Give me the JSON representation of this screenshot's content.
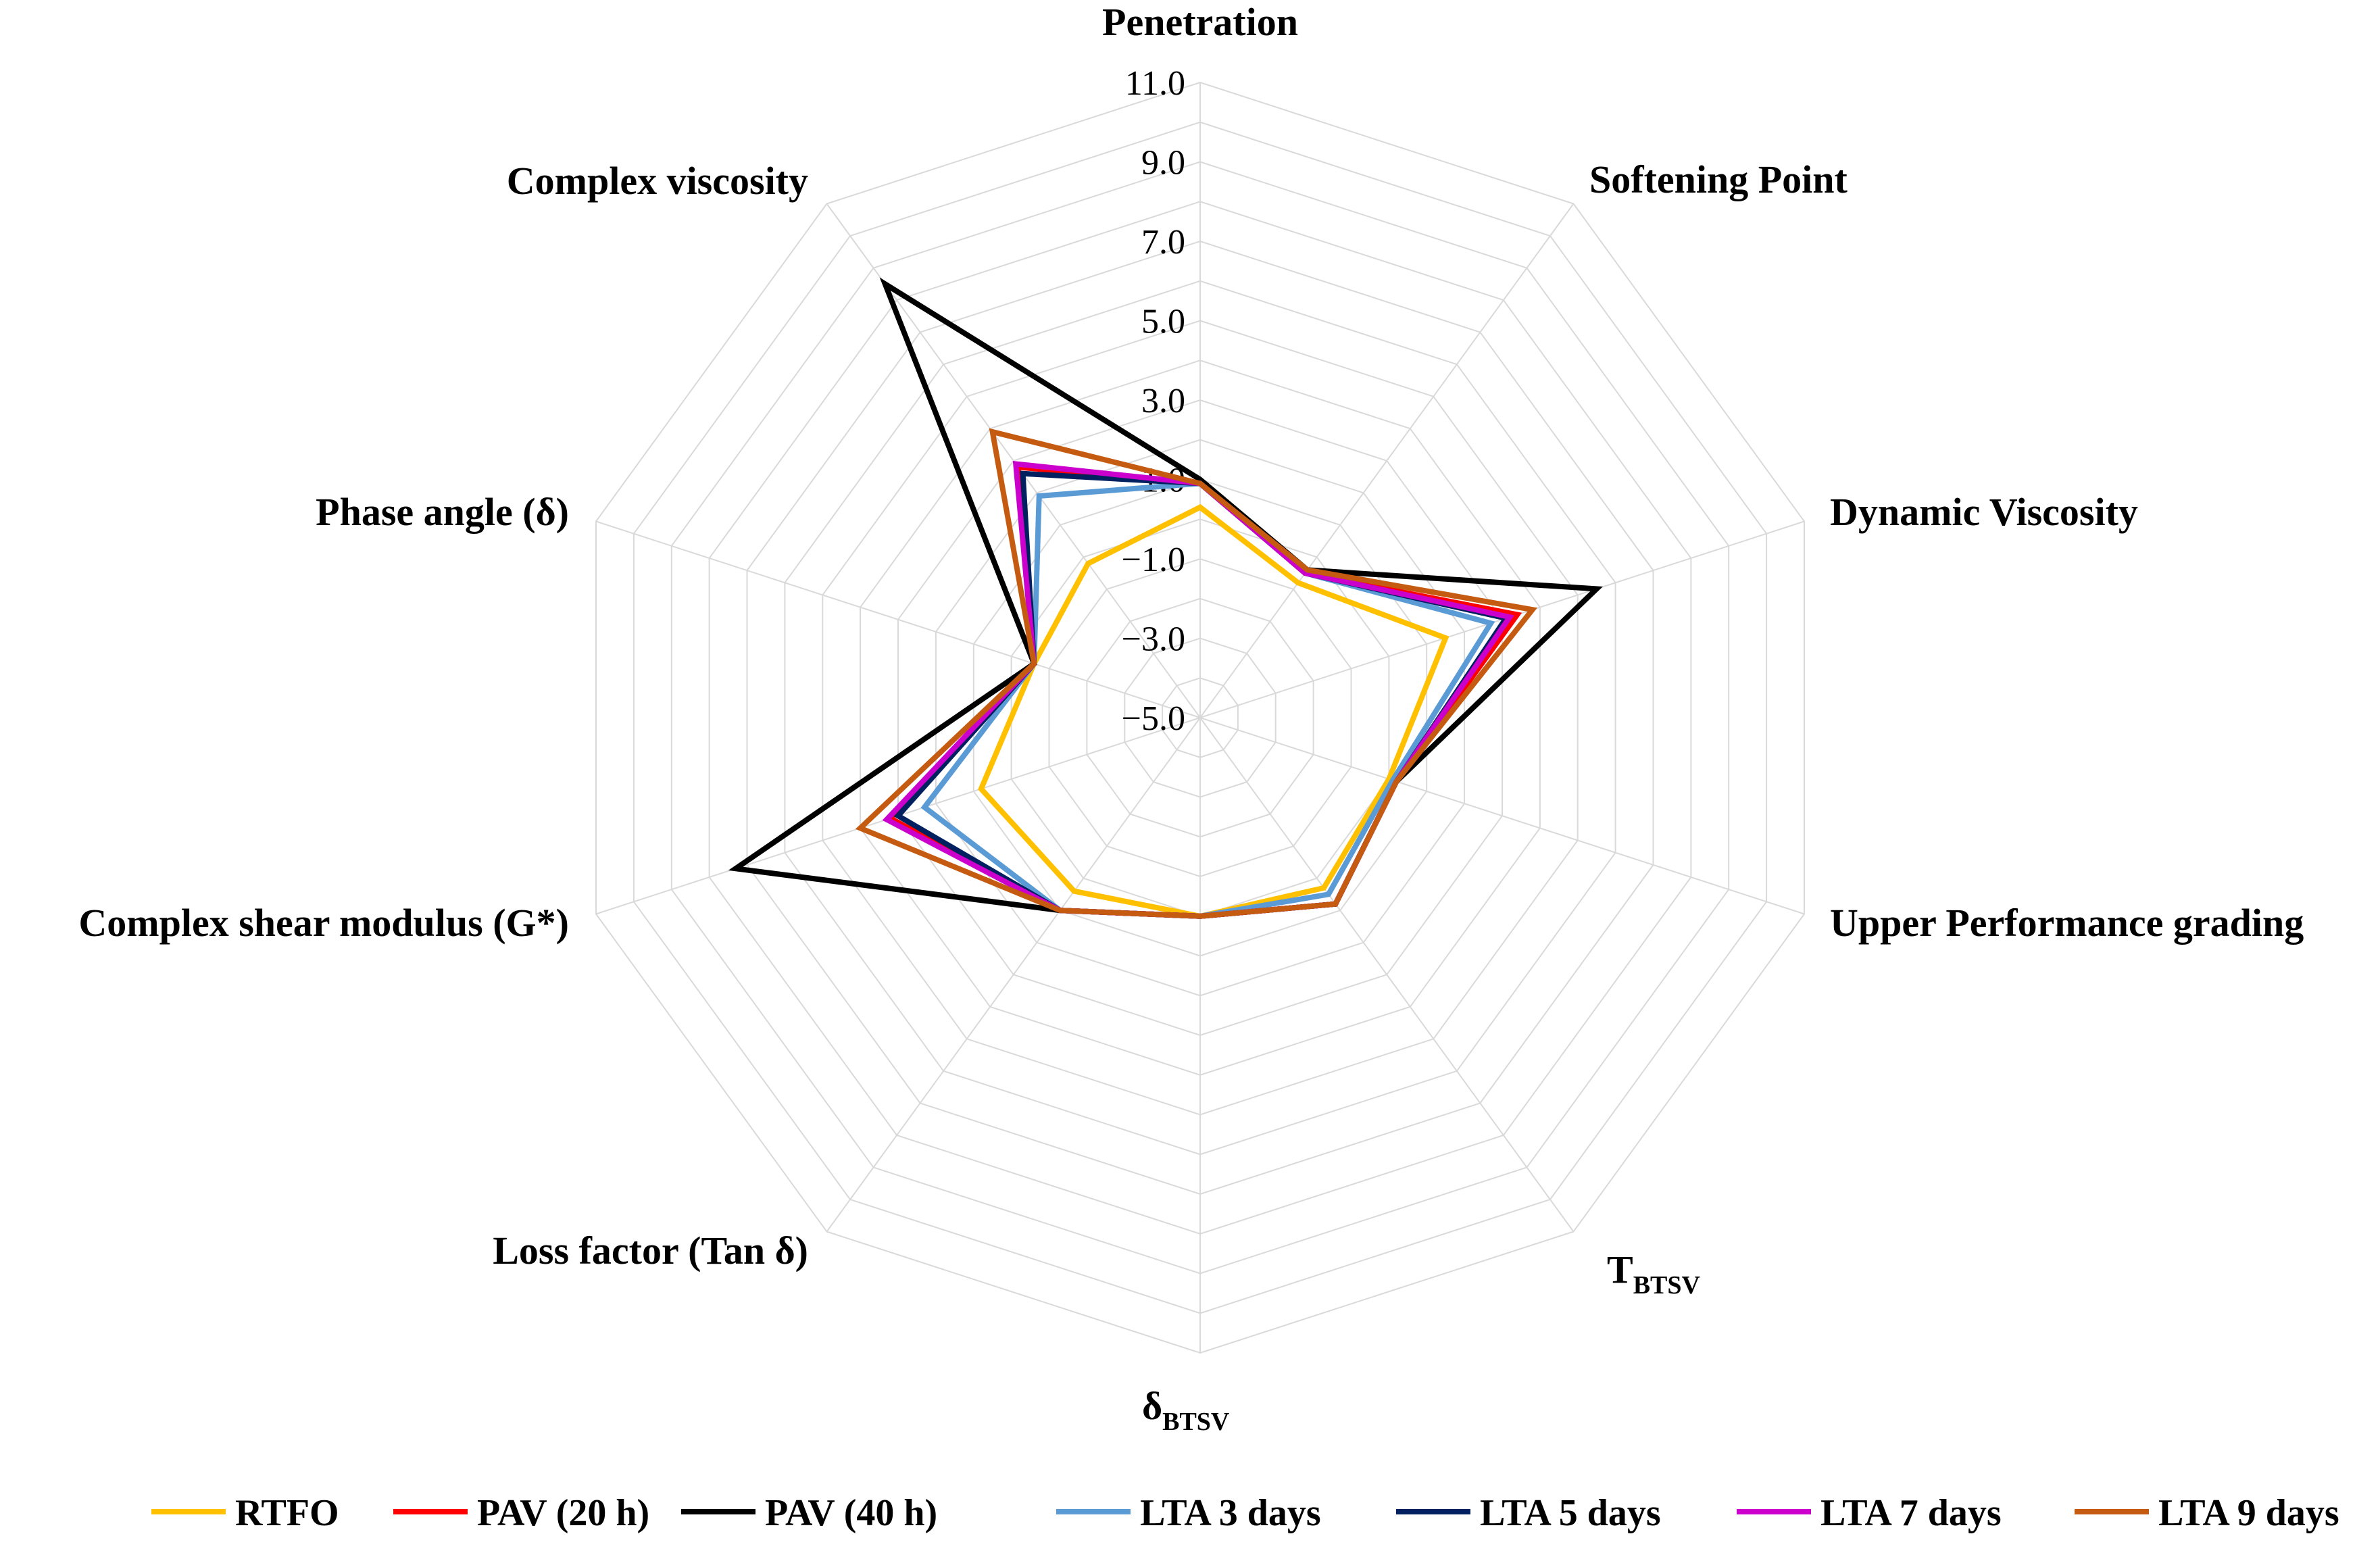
{
  "chart_data": {
    "type": "radar",
    "title": "",
    "axes": [
      {
        "label": "Penetration",
        "sub": ""
      },
      {
        "label": "Softening Point",
        "sub": ""
      },
      {
        "label": "Dynamic Viscosity",
        "sub": ""
      },
      {
        "label": "Upper Performance grading",
        "sub": ""
      },
      {
        "label": "T",
        "sub": "BTSV"
      },
      {
        "label": "δ",
        "sub": "BTSV"
      },
      {
        "label": "Loss factor (Tan δ)",
        "sub": ""
      },
      {
        "label": "Complex shear modulus (G*)",
        "sub": ""
      },
      {
        "label": "Phase angle (δ)",
        "sub": ""
      },
      {
        "label": "Complex viscosity",
        "sub": ""
      }
    ],
    "r_range": [
      -5.0,
      11.0
    ],
    "ticks": [
      -5.0,
      -3.0,
      -1.0,
      1.0,
      3.0,
      5.0,
      7.0,
      9.0,
      11.0
    ],
    "tick_labels": [
      "−5.0",
      "−3.0",
      "−1.0",
      "1.0",
      "3.0",
      "5.0",
      "7.0",
      "9.0",
      "11.0"
    ],
    "grid": true,
    "legend_position": "bottom",
    "series": [
      {
        "name": "RTFO",
        "color": "#ffc000",
        "values": [
          0.3,
          -0.8,
          1.5,
          0.0,
          0.3,
          0.0,
          0.4,
          0.8,
          -0.6,
          -0.2
        ]
      },
      {
        "name": "PAV (20 h)",
        "color": "#ff0000",
        "values": [
          0.9,
          -0.5,
          3.4,
          0.2,
          0.8,
          0.0,
          1.0,
          3.2,
          -0.6,
          2.8
        ]
      },
      {
        "name": "PAV (40 h)",
        "color": "#000000",
        "values": [
          1.0,
          -0.4,
          5.5,
          0.2,
          0.8,
          0.0,
          1.0,
          7.3,
          -0.6,
          8.5
        ]
      },
      {
        "name": "LTA 3 days",
        "color": "#5b9bd5",
        "values": [
          0.9,
          -0.5,
          2.7,
          0.1,
          0.5,
          0.0,
          1.0,
          2.3,
          -0.6,
          1.9
        ]
      },
      {
        "name": "LTA 5 days",
        "color": "#002060",
        "values": [
          0.9,
          -0.5,
          3.1,
          0.2,
          0.8,
          0.0,
          1.0,
          3.0,
          -0.6,
          2.6
        ]
      },
      {
        "name": "LTA 7 days",
        "color": "#cc00cc",
        "values": [
          0.9,
          -0.5,
          3.2,
          0.2,
          0.8,
          0.0,
          1.0,
          3.3,
          -0.6,
          2.9
        ]
      },
      {
        "name": "LTA 9 days",
        "color": "#c55a11",
        "values": [
          0.9,
          -0.4,
          3.8,
          0.2,
          0.8,
          0.0,
          1.0,
          4.0,
          -0.6,
          3.9
        ]
      }
    ]
  }
}
